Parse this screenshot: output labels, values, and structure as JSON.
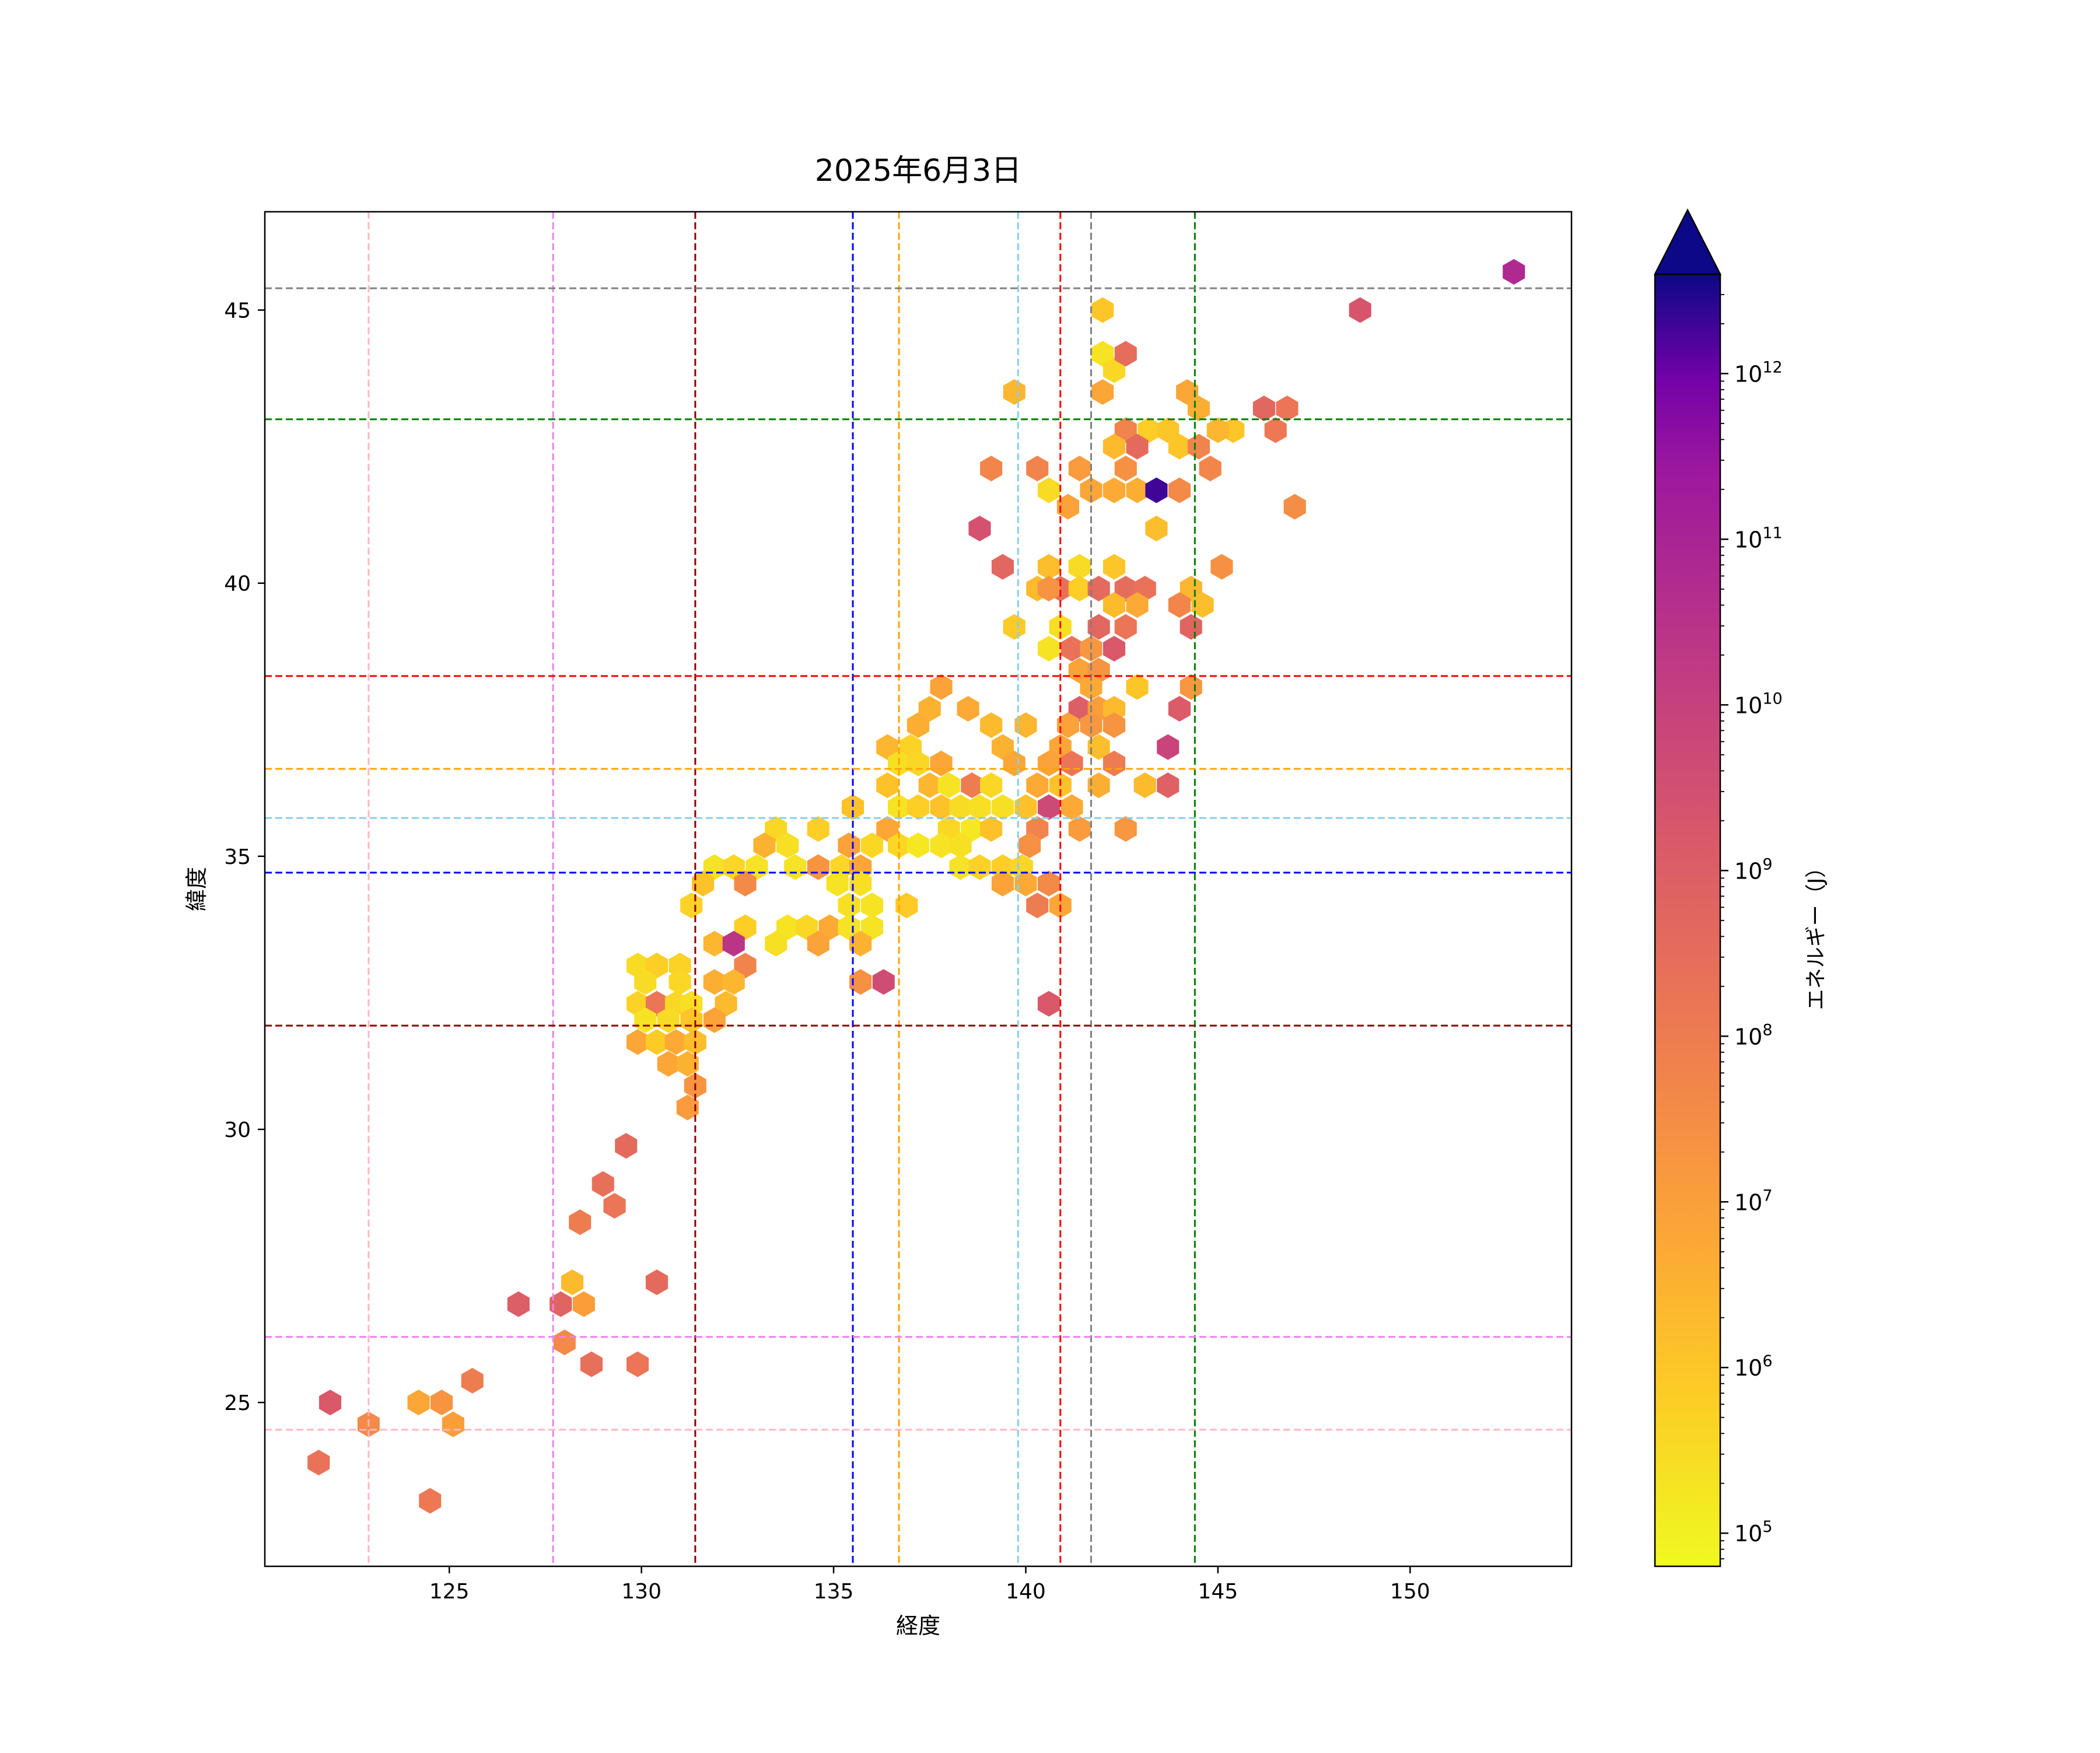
{
  "chart_data": {
    "type": "heatmap",
    "subtype": "hexbin",
    "title": "2025年6月3日",
    "xlabel": "経度",
    "ylabel": "緯度",
    "xlim": [
      120.2,
      154.2
    ],
    "ylim": [
      22.0,
      46.8
    ],
    "xticks": [
      125,
      130,
      135,
      140,
      145,
      150
    ],
    "yticks": [
      25,
      30,
      35,
      40,
      45
    ],
    "colormap": "plasma_r",
    "color_scale": "log",
    "colorbar": {
      "label": "エネルギー（J）",
      "range_log10": [
        4.8,
        12.6
      ],
      "ticks_log10": [
        5,
        6,
        7,
        8,
        9,
        10,
        11,
        12
      ],
      "extend": "max",
      "extend_color": "#0d0887"
    },
    "reference_lines": {
      "vertical": [
        {
          "x": 122.9,
          "color": "#ffb6c1"
        },
        {
          "x": 127.7,
          "color": "#ee82ee"
        },
        {
          "x": 131.4,
          "color": "#8b0000"
        },
        {
          "x": 135.5,
          "color": "#0000ff"
        },
        {
          "x": 136.7,
          "color": "#ffa500"
        },
        {
          "x": 139.8,
          "color": "#87ceeb"
        },
        {
          "x": 140.9,
          "color": "#ff0000"
        },
        {
          "x": 141.7,
          "color": "#808080"
        },
        {
          "x": 144.4,
          "color": "#008000"
        }
      ],
      "horizontal": [
        {
          "y": 45.4,
          "color": "#808080"
        },
        {
          "y": 43.0,
          "color": "#008000"
        },
        {
          "y": 38.3,
          "color": "#ff0000"
        },
        {
          "y": 36.6,
          "color": "#ffa500"
        },
        {
          "y": 35.7,
          "color": "#87ceeb"
        },
        {
          "y": 34.7,
          "color": "#0000ff"
        },
        {
          "y": 31.9,
          "color": "#8b0000"
        },
        {
          "y": 26.2,
          "color": "#ee82ee"
        },
        {
          "y": 24.5,
          "color": "#ffb6c1"
        }
      ]
    },
    "points": [
      [
        152.7,
        45.7,
        10.8
      ],
      [
        148.7,
        45.0,
        9.3
      ],
      [
        142.0,
        45.0,
        6.0
      ],
      [
        142.0,
        44.2,
        5.3
      ],
      [
        142.3,
        43.9,
        5.6
      ],
      [
        142.6,
        44.2,
        8.5
      ],
      [
        142.0,
        43.5,
        6.8
      ],
      [
        144.2,
        43.5,
        6.8
      ],
      [
        144.5,
        43.2,
        6.6
      ],
      [
        146.2,
        43.2,
        8.7
      ],
      [
        146.8,
        43.2,
        8.2
      ],
      [
        146.5,
        42.8,
        8.1
      ],
      [
        145.4,
        42.8,
        6.0
      ],
      [
        145.0,
        42.8,
        6.4
      ],
      [
        143.2,
        42.8,
        5.8
      ],
      [
        142.6,
        42.8,
        7.8
      ],
      [
        143.7,
        42.8,
        6.0
      ],
      [
        142.3,
        42.5,
        6.3
      ],
      [
        142.9,
        42.5,
        8.6
      ],
      [
        144.0,
        42.5,
        6.0
      ],
      [
        144.5,
        42.5,
        7.8
      ],
      [
        139.1,
        42.1,
        7.7
      ],
      [
        140.3,
        42.1,
        7.8
      ],
      [
        141.4,
        42.1,
        7.1
      ],
      [
        142.6,
        42.1,
        7.4
      ],
      [
        144.8,
        42.1,
        7.7
      ],
      [
        140.6,
        41.7,
        5.5
      ],
      [
        141.7,
        41.7,
        6.8
      ],
      [
        142.3,
        41.7,
        6.7
      ],
      [
        142.9,
        41.7,
        6.6
      ],
      [
        143.4,
        41.7,
        12.3
      ],
      [
        144.0,
        41.7,
        7.6
      ],
      [
        139.7,
        43.5,
        6.4
      ],
      [
        141.1,
        41.4,
        6.9
      ],
      [
        147.0,
        41.4,
        7.5
      ],
      [
        138.8,
        41.0,
        9.4
      ],
      [
        143.4,
        41.0,
        6.2
      ],
      [
        139.4,
        40.3,
        8.7
      ],
      [
        140.6,
        40.3,
        6.2
      ],
      [
        141.4,
        40.3,
        5.5
      ],
      [
        142.3,
        40.3,
        6.0
      ],
      [
        145.1,
        40.3,
        7.4
      ],
      [
        140.3,
        39.9,
        6.3
      ],
      [
        140.9,
        39.9,
        8.4
      ],
      [
        141.4,
        39.9,
        5.8
      ],
      [
        141.9,
        39.9,
        8.6
      ],
      [
        142.6,
        39.9,
        8.5
      ],
      [
        143.1,
        39.9,
        8.3
      ],
      [
        144.3,
        39.9,
        6.4
      ],
      [
        140.6,
        39.9,
        7.3
      ],
      [
        142.3,
        39.6,
        6.3
      ],
      [
        142.9,
        39.6,
        6.7
      ],
      [
        144.0,
        39.6,
        7.7
      ],
      [
        144.6,
        39.6,
        6.2
      ],
      [
        139.7,
        39.2,
        5.9
      ],
      [
        140.9,
        39.2,
        5.4
      ],
      [
        141.9,
        39.2,
        8.7
      ],
      [
        142.6,
        39.2,
        8.2
      ],
      [
        144.3,
        39.2,
        8.8
      ],
      [
        140.6,
        38.8,
        5.3
      ],
      [
        141.2,
        38.8,
        8.3
      ],
      [
        141.7,
        38.8,
        7.2
      ],
      [
        142.3,
        38.8,
        9.2
      ],
      [
        141.4,
        38.4,
        6.9
      ],
      [
        141.9,
        38.4,
        7.3
      ],
      [
        137.8,
        38.1,
        6.9
      ],
      [
        141.7,
        38.1,
        6.7
      ],
      [
        142.9,
        38.1,
        6.0
      ],
      [
        144.3,
        38.1,
        7.2
      ],
      [
        137.5,
        37.7,
        6.5
      ],
      [
        138.5,
        37.7,
        6.7
      ],
      [
        141.4,
        37.7,
        9.0
      ],
      [
        141.9,
        37.7,
        7.0
      ],
      [
        142.3,
        37.7,
        6.3
      ],
      [
        144.0,
        37.7,
        9.1
      ],
      [
        137.2,
        37.4,
        6.6
      ],
      [
        139.1,
        37.4,
        6.3
      ],
      [
        140.0,
        37.4,
        6.4
      ],
      [
        141.1,
        37.4,
        6.9
      ],
      [
        141.7,
        37.4,
        7.2
      ],
      [
        142.3,
        37.4,
        7.3
      ],
      [
        136.4,
        37.0,
        6.4
      ],
      [
        137.0,
        37.0,
        5.7
      ],
      [
        139.4,
        37.0,
        6.5
      ],
      [
        140.9,
        37.0,
        6.8
      ],
      [
        141.9,
        37.0,
        6.2
      ],
      [
        143.7,
        37.0,
        9.9
      ],
      [
        136.7,
        36.7,
        5.4
      ],
      [
        137.2,
        36.7,
        5.6
      ],
      [
        137.8,
        36.7,
        6.8
      ],
      [
        139.7,
        36.7,
        6.8
      ],
      [
        140.6,
        36.7,
        6.9
      ],
      [
        141.2,
        36.7,
        8.2
      ],
      [
        142.3,
        36.7,
        8.0
      ],
      [
        136.4,
        36.3,
        6.1
      ],
      [
        137.5,
        36.3,
        6.4
      ],
      [
        138.0,
        36.3,
        5.3
      ],
      [
        138.6,
        36.3,
        8.0
      ],
      [
        139.1,
        36.3,
        5.6
      ],
      [
        140.3,
        36.3,
        6.7
      ],
      [
        140.9,
        36.3,
        6.1
      ],
      [
        141.9,
        36.3,
        6.6
      ],
      [
        143.1,
        36.3,
        6.3
      ],
      [
        143.7,
        36.3,
        8.9
      ],
      [
        135.5,
        35.9,
        6.1
      ],
      [
        136.7,
        35.9,
        5.3
      ],
      [
        137.2,
        35.9,
        5.8
      ],
      [
        137.8,
        35.9,
        6.1
      ],
      [
        138.3,
        35.9,
        5.5
      ],
      [
        138.8,
        35.9,
        5.4
      ],
      [
        139.4,
        35.9,
        5.4
      ],
      [
        140.0,
        35.9,
        6.1
      ],
      [
        140.6,
        35.9,
        9.7
      ],
      [
        141.2,
        35.9,
        6.7
      ],
      [
        133.5,
        35.5,
        5.6
      ],
      [
        134.6,
        35.5,
        5.8
      ],
      [
        136.4,
        35.5,
        6.8
      ],
      [
        138.0,
        35.5,
        5.6
      ],
      [
        138.6,
        35.5,
        5.2
      ],
      [
        139.1,
        35.5,
        6.1
      ],
      [
        140.3,
        35.5,
        7.8
      ],
      [
        141.4,
        35.5,
        7.1
      ],
      [
        142.6,
        35.5,
        7.2
      ],
      [
        133.2,
        35.2,
        6.5
      ],
      [
        133.8,
        35.2,
        5.4
      ],
      [
        135.4,
        35.2,
        6.9
      ],
      [
        136.0,
        35.2,
        5.6
      ],
      [
        136.7,
        35.2,
        5.6
      ],
      [
        137.2,
        35.2,
        5.2
      ],
      [
        137.8,
        35.2,
        5.3
      ],
      [
        138.3,
        35.2,
        5.4
      ],
      [
        140.1,
        35.2,
        7.4
      ],
      [
        131.9,
        34.8,
        5.3
      ],
      [
        132.4,
        34.8,
        5.6
      ],
      [
        133.0,
        34.8,
        5.3
      ],
      [
        134.0,
        34.8,
        5.3
      ],
      [
        134.6,
        34.8,
        7.3
      ],
      [
        135.2,
        34.8,
        5.6
      ],
      [
        135.7,
        34.8,
        6.8
      ],
      [
        138.3,
        34.8,
        5.3
      ],
      [
        138.8,
        34.8,
        5.7
      ],
      [
        139.4,
        34.8,
        5.8
      ],
      [
        139.9,
        34.8,
        5.6
      ],
      [
        131.6,
        34.5,
        6.1
      ],
      [
        132.7,
        34.5,
        7.6
      ],
      [
        135.1,
        34.5,
        5.3
      ],
      [
        135.7,
        34.5,
        5.4
      ],
      [
        139.4,
        34.5,
        6.9
      ],
      [
        140.0,
        34.5,
        6.7
      ],
      [
        140.6,
        34.5,
        7.6
      ],
      [
        131.3,
        34.1,
        5.7
      ],
      [
        135.4,
        34.1,
        5.4
      ],
      [
        136.0,
        34.1,
        5.3
      ],
      [
        136.9,
        34.1,
        5.9
      ],
      [
        140.3,
        34.1,
        8.0
      ],
      [
        140.9,
        34.1,
        6.8
      ],
      [
        132.7,
        33.7,
        5.8
      ],
      [
        133.8,
        33.7,
        5.3
      ],
      [
        134.3,
        33.7,
        5.6
      ],
      [
        134.9,
        33.7,
        6.7
      ],
      [
        135.4,
        33.7,
        5.3
      ],
      [
        136.0,
        33.7,
        5.3
      ],
      [
        131.9,
        33.4,
        6.4
      ],
      [
        132.4,
        33.4,
        10.4
      ],
      [
        133.5,
        33.4,
        5.4
      ],
      [
        134.6,
        33.4,
        6.9
      ],
      [
        135.7,
        33.4,
        6.5
      ],
      [
        129.9,
        33.0,
        5.5
      ],
      [
        130.4,
        33.0,
        5.8
      ],
      [
        131.0,
        33.0,
        5.7
      ],
      [
        132.7,
        33.0,
        7.8
      ],
      [
        130.1,
        32.7,
        5.5
      ],
      [
        131.0,
        32.7,
        5.6
      ],
      [
        131.9,
        32.7,
        6.6
      ],
      [
        132.4,
        32.7,
        6.4
      ],
      [
        135.7,
        32.7,
        7.4
      ],
      [
        136.3,
        32.7,
        9.6
      ],
      [
        129.9,
        32.3,
        5.7
      ],
      [
        130.4,
        32.3,
        8.2
      ],
      [
        130.9,
        32.3,
        5.6
      ],
      [
        131.3,
        32.3,
        5.4
      ],
      [
        132.2,
        32.3,
        6.3
      ],
      [
        140.6,
        32.3,
        9.2
      ],
      [
        130.1,
        32.0,
        5.3
      ],
      [
        130.7,
        32.0,
        5.5
      ],
      [
        131.3,
        32.0,
        6.0
      ],
      [
        131.9,
        32.0,
        6.9
      ],
      [
        129.9,
        31.6,
        6.8
      ],
      [
        130.4,
        31.6,
        5.9
      ],
      [
        130.9,
        31.6,
        6.7
      ],
      [
        131.4,
        31.6,
        6.2
      ],
      [
        130.7,
        31.2,
        6.8
      ],
      [
        131.2,
        31.2,
        6.5
      ],
      [
        131.4,
        30.8,
        7.3
      ],
      [
        131.2,
        30.4,
        7.1
      ],
      [
        129.6,
        29.7,
        8.6
      ],
      [
        129.0,
        29.0,
        8.4
      ],
      [
        129.3,
        28.6,
        8.2
      ],
      [
        128.4,
        28.3,
        8.0
      ],
      [
        130.4,
        27.2,
        8.6
      ],
      [
        128.2,
        27.2,
        6.3
      ],
      [
        126.8,
        26.8,
        9.0
      ],
      [
        127.9,
        26.8,
        8.8
      ],
      [
        128.5,
        26.8,
        7.0
      ],
      [
        128.0,
        26.1,
        7.6
      ],
      [
        128.7,
        25.7,
        8.4
      ],
      [
        129.9,
        25.7,
        8.2
      ],
      [
        125.6,
        25.4,
        8.0
      ],
      [
        121.9,
        25.0,
        9.2
      ],
      [
        124.2,
        25.0,
        6.8
      ],
      [
        124.8,
        25.0,
        7.3
      ],
      [
        122.9,
        24.6,
        7.6
      ],
      [
        125.1,
        24.6,
        7.0
      ],
      [
        121.6,
        23.9,
        8.3
      ],
      [
        124.5,
        23.2,
        8.1
      ]
    ]
  }
}
